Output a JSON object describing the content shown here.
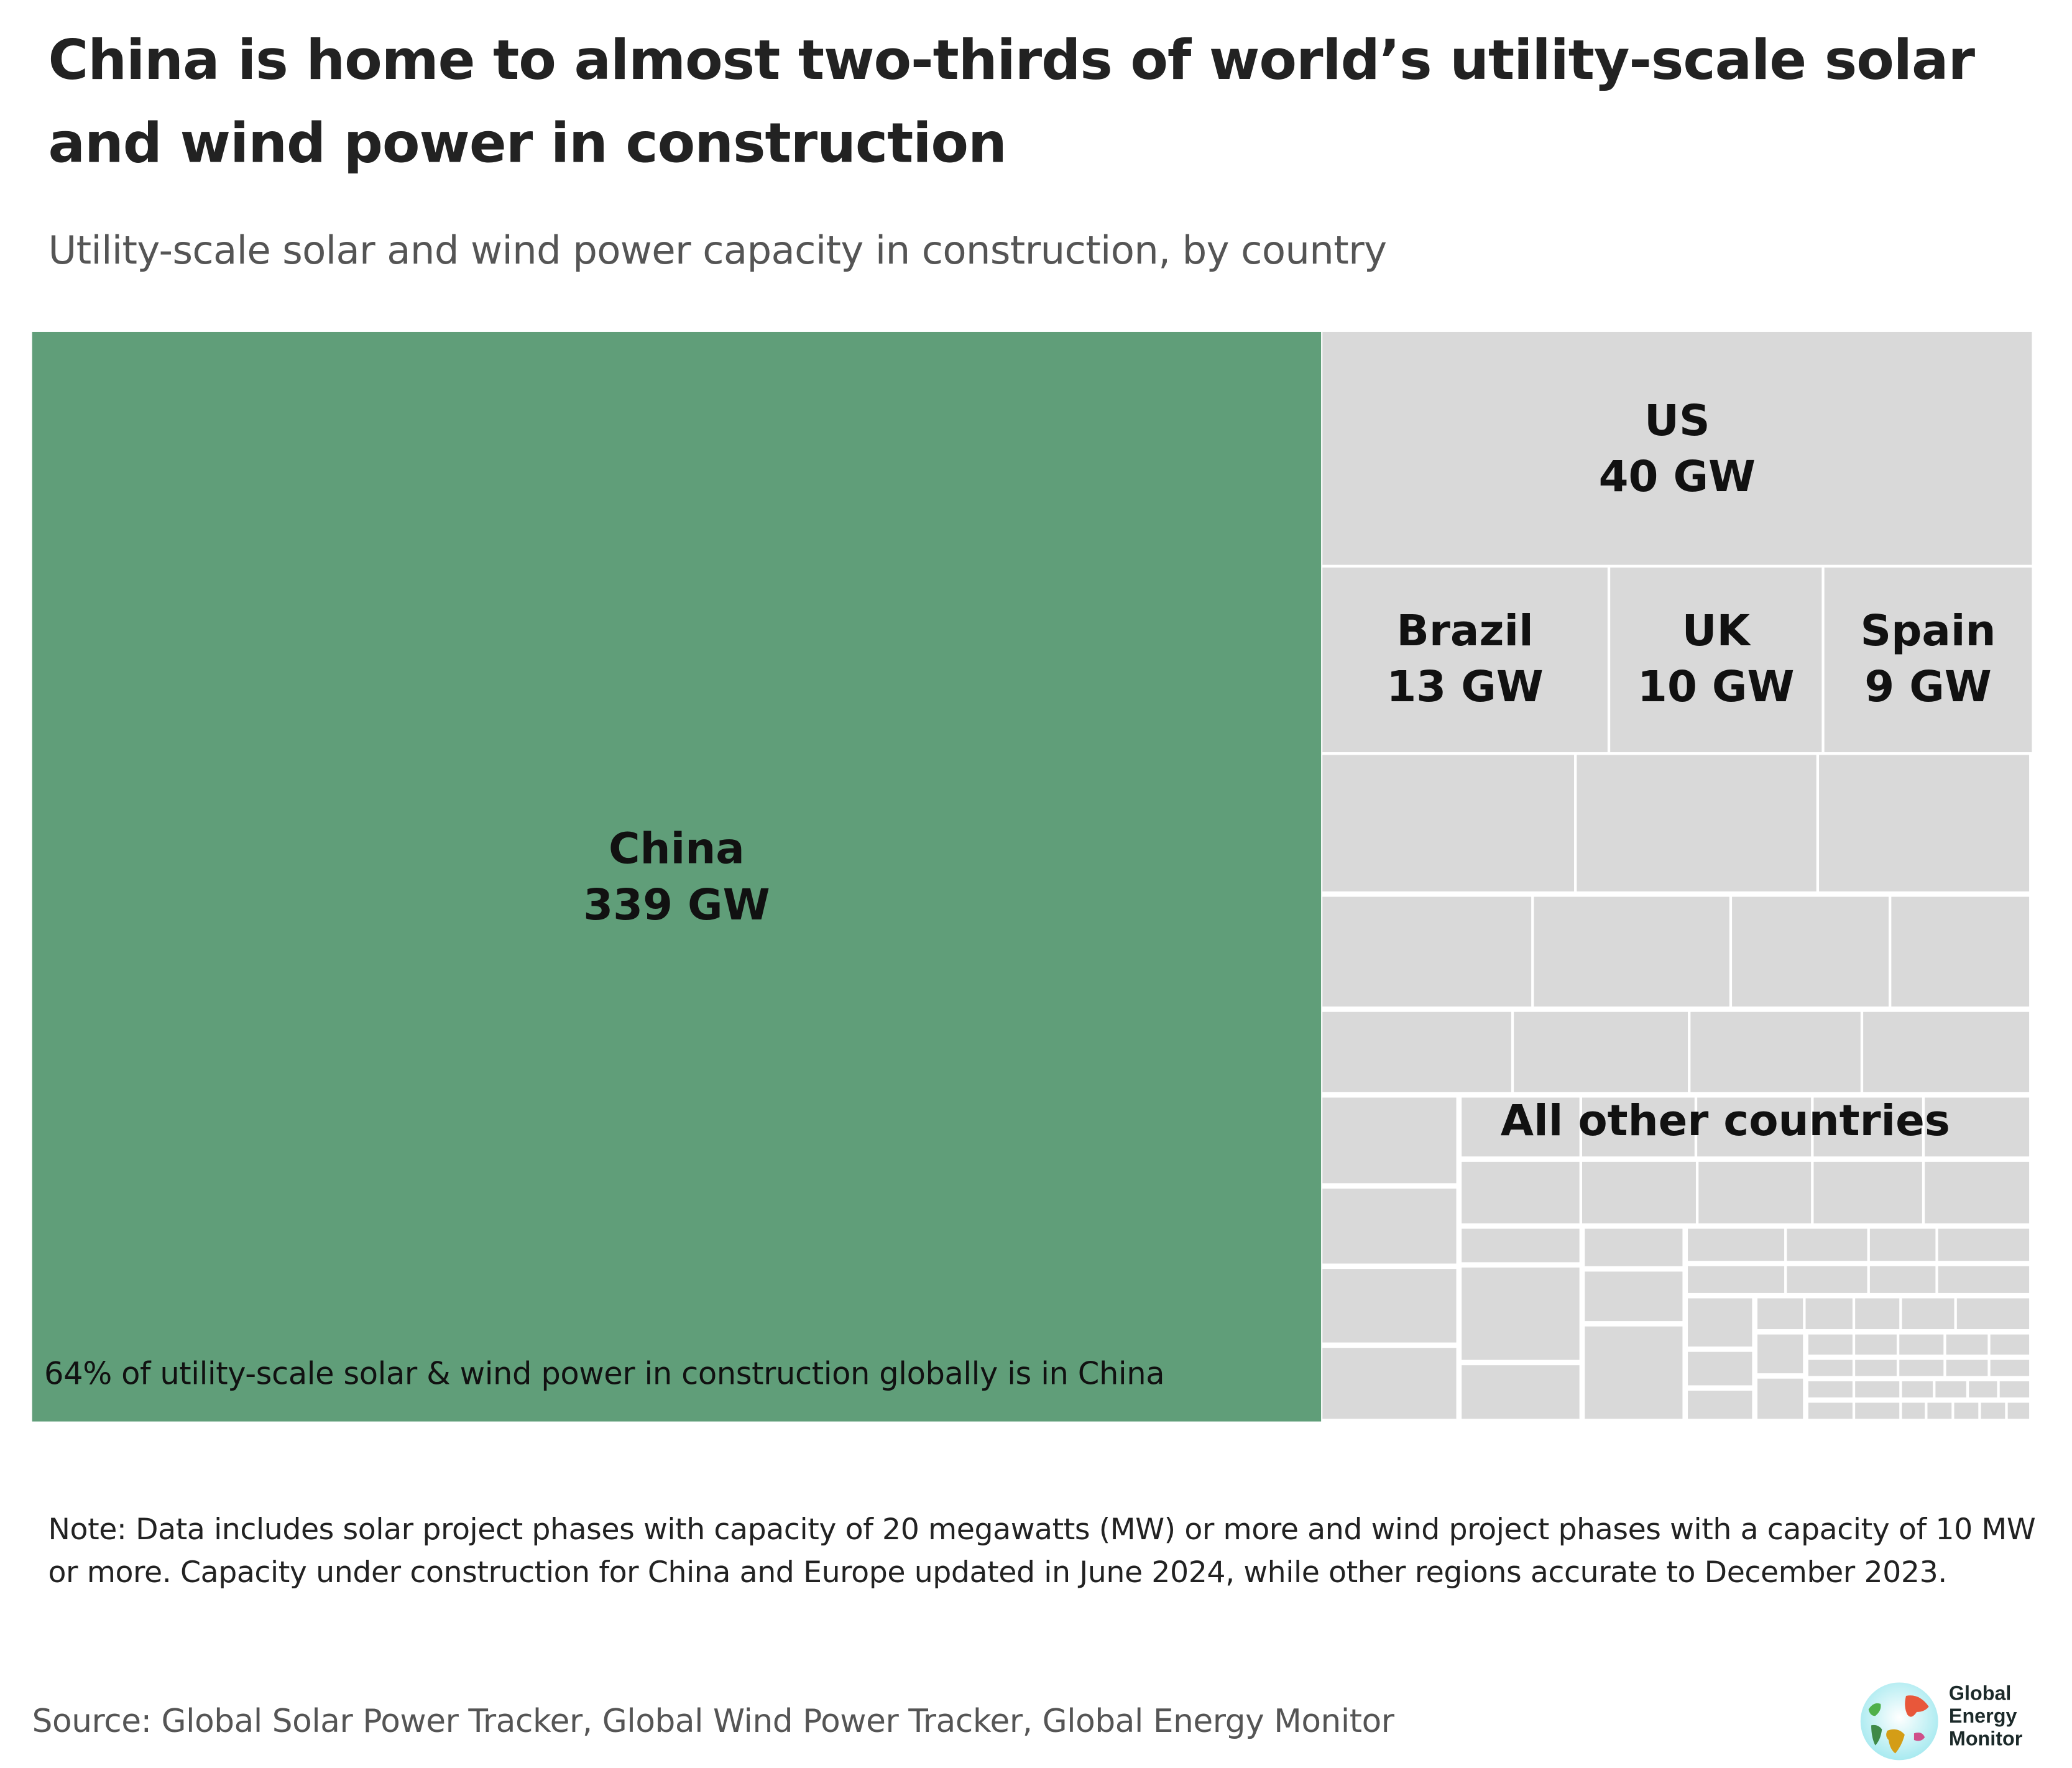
{
  "header": {
    "title": "China is home to almost two-thirds of world’s utility-scale solar and wind power in construction",
    "subtitle": "Utility-scale solar and wind power capacity in construction, by country"
  },
  "chart_data": {
    "type": "treemap",
    "title": "China is home to almost two-thirds of world’s utility-scale solar and wind power in construction",
    "subtitle": "Utility-scale solar and wind power capacity in construction, by country",
    "unit": "GW",
    "series": [
      {
        "name": "China",
        "value": 339,
        "label": "339 GW",
        "color": "#609e79"
      },
      {
        "name": "US",
        "value": 40,
        "label": "40 GW",
        "color": "#d9d9d9"
      },
      {
        "name": "Brazil",
        "value": 13,
        "label": "13 GW",
        "color": "#d9d9d9"
      },
      {
        "name": "UK",
        "value": 10,
        "label": "10 GW",
        "color": "#d9d9d9"
      },
      {
        "name": "Spain",
        "value": 9,
        "label": "9 GW",
        "color": "#d9d9d9"
      },
      {
        "name": "All other countries",
        "value": null,
        "label": "",
        "color": "#d9d9d9"
      }
    ],
    "annotations": [
      "64% of utility-scale solar & wind power in construction globally is in China"
    ],
    "china_share_percent": 64
  },
  "footer": {
    "note": "Note: Data includes solar project phases with capacity of 20 megawatts (MW) or more and wind project phases with a capacity of 10 MW or more. Capacity under construction for China and Europe updated in June 2024, while other regions accurate to December 2023.",
    "source": "Source: Global Solar Power Tracker, Global Wind Power Tracker, Global Energy Monitor",
    "logo_text": [
      "Global",
      "Energy",
      "Monitor"
    ]
  },
  "colors": {
    "china": "#609e79",
    "others": "#d9d9d9"
  }
}
